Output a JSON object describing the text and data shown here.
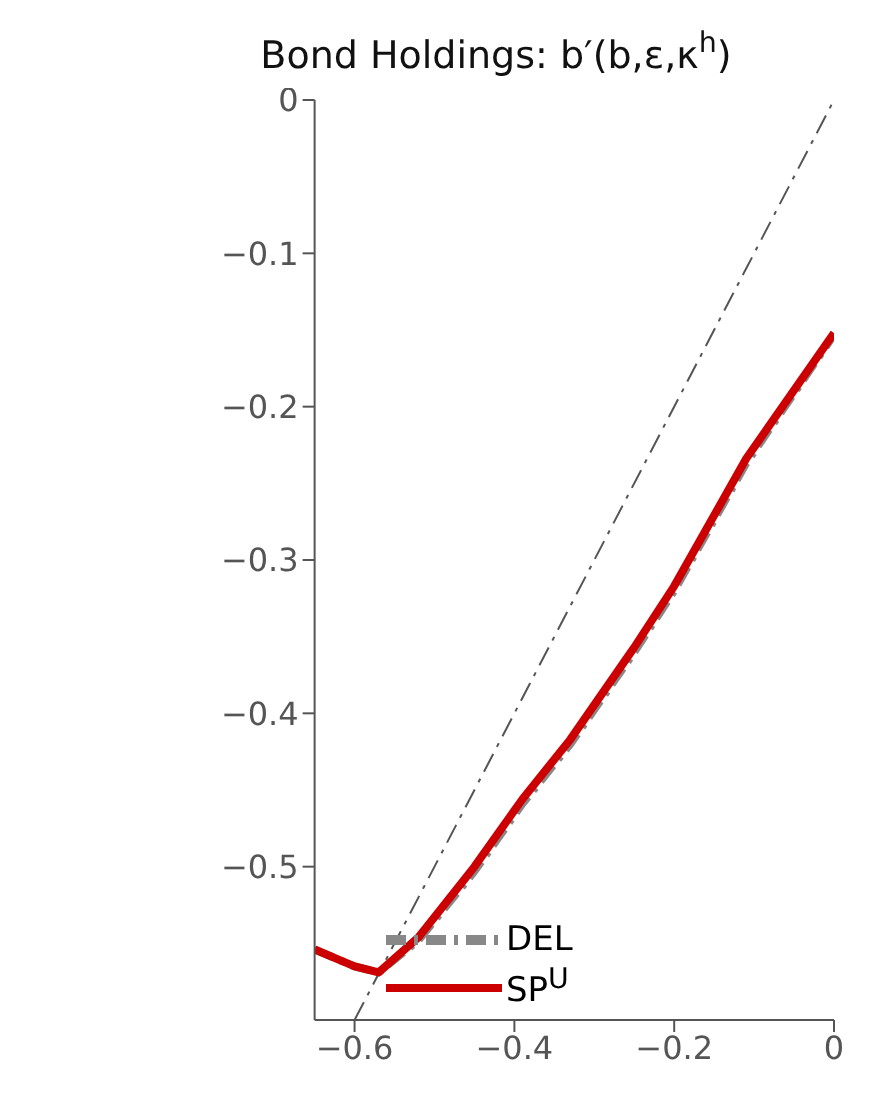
{
  "chart_data": {
    "type": "line",
    "title": "Bond Holdings: b′(b,ε,κ$^{h}$)",
    "xlim": [
      -0.65,
      0
    ],
    "xticks": [
      -0.6,
      -0.4,
      -0.2,
      0
    ],
    "ylim": [
      -0.6,
      0
    ],
    "yticks": [
      0,
      -0.1,
      -0.2,
      -0.3,
      -0.4,
      -0.5
    ],
    "grid": false,
    "legend": "bottom left",
    "marker": "none",
    "series": [
      {
        "x": [
          -0.6,
          0
        ],
        "values": [
          -0.6,
          0
        ],
        "color": "#555555",
        "line_style": "dashed"
      },
      {
        "name": "DEL",
        "x": [
          -0.65,
          -0.6,
          -0.57,
          -0.52,
          -0.45,
          -0.39,
          -0.33,
          -0.25,
          -0.2,
          -0.11,
          0
        ],
        "values": [
          -0.554,
          -0.565,
          -0.569,
          -0.548,
          -0.503,
          -0.459,
          -0.42,
          -0.36,
          -0.32,
          -0.237,
          -0.153
        ],
        "color": "#888888",
        "line_style": "dashed"
      },
      {
        "name": "SP$^{U}$",
        "x": [
          -0.65,
          -0.6,
          -0.57,
          -0.52,
          -0.45,
          -0.39,
          -0.33,
          -0.25,
          -0.2,
          -0.11,
          0
        ],
        "values": [
          -0.554,
          -0.565,
          -0.569,
          -0.546,
          -0.5,
          -0.456,
          -0.417,
          -0.357,
          -0.317,
          -0.234,
          -0.152
        ],
        "color": "#cc0000",
        "line_style": "solid"
      }
    ]
  }
}
